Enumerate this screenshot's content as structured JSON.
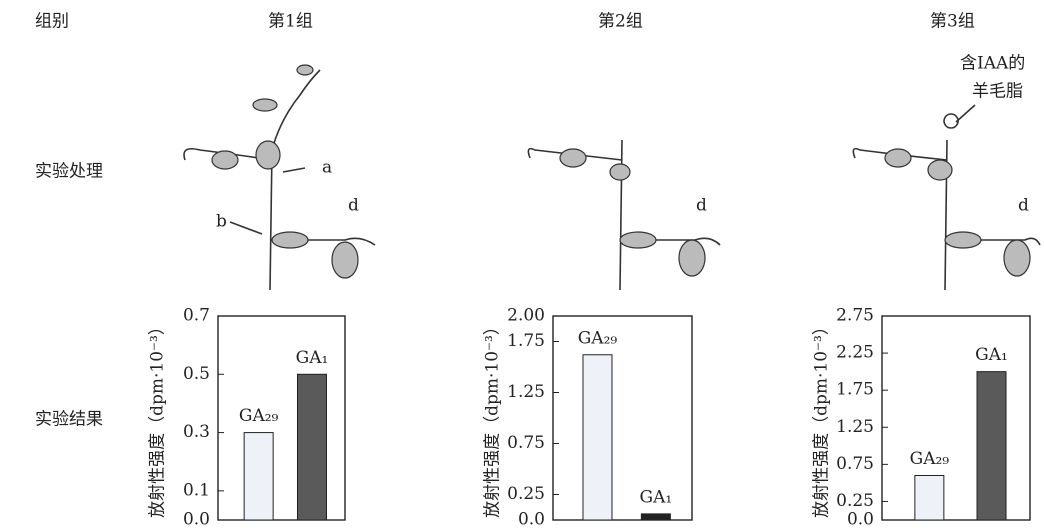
{
  "groups_label": "组别",
  "groups": [
    "第1组",
    "第2组",
    "第3组"
  ],
  "rows": [
    "实验处理",
    "实验结果"
  ],
  "plant_labels": [
    "a",
    "b",
    "d",
    "d",
    "d",
    "含IAA的",
    "羊毛脂"
  ],
  "chart_data": [
    {
      "type": "bar",
      "ylabel": "放射性强度（dpm·10⁻³）",
      "categories": [
        "GA₂₉",
        "GA₁"
      ],
      "values": [
        0.3,
        0.5
      ],
      "colors": [
        "#eef1f8",
        "#5a5a5a"
      ],
      "ylim": [
        0,
        0.7
      ],
      "yticks": [
        {
          "value": 0,
          "label": "0.0"
        },
        0.1,
        0.3,
        0.5,
        0.7
      ]
    },
    {
      "type": "bar",
      "ylabel": "放射性强度（dpm·10⁻³）",
      "categories": [
        "GA₂₉",
        "GA₁"
      ],
      "values": [
        1.62,
        0.06
      ],
      "colors": [
        "#eef1f8",
        "#222222"
      ],
      "ylim": [
        0,
        2.0
      ],
      "yticks": [
        {
          "value": 0,
          "label": "0.0"
        },
        0.25,
        0.75,
        1.25,
        1.75,
        {
          "value": 2.0,
          "label": "2.00"
        }
      ]
    },
    {
      "type": "bar",
      "ylabel": "放射性强度（dpm·10⁻³）",
      "categories": [
        "GA₂₉",
        "GA₁"
      ],
      "values": [
        0.6,
        2.0
      ],
      "colors": [
        "#eef1f8",
        "#5a5a5a"
      ],
      "ylim": [
        0,
        2.75
      ],
      "yticks": [
        {
          "value": 0,
          "label": "0.0"
        },
        0.25,
        0.75,
        1.25,
        1.75,
        2.25,
        2.75
      ]
    }
  ]
}
